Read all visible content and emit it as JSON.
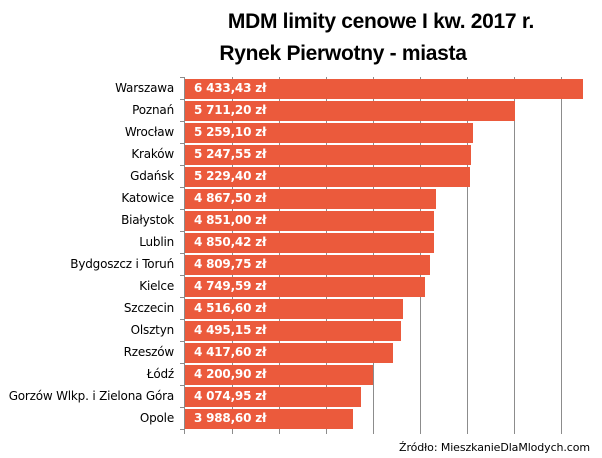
{
  "title_line1": "MDM limity cenowe I kw. 2017 r.",
  "title_line2": "Rynek Pierwotny - miasta",
  "source": "Źródło: MieszkanieDlaMlodych.com",
  "colors": {
    "bar": "#EB5A3C",
    "grid": "#8c8c8c",
    "label": "#ffffff"
  },
  "chart_data": {
    "type": "bar",
    "orientation": "horizontal",
    "title": "MDM limity cenowe I kw. 2017 r. Rynek Pierwotny - miasta",
    "xlabel": "",
    "ylabel": "",
    "unit": "zł",
    "categories": [
      "Warszawa",
      "Poznań",
      "Wrocław",
      "Kraków",
      "Gdańsk",
      "Katowice",
      "Białystok",
      "Lublin",
      "Bydgoszcz i Toruń",
      "Kielce",
      "Szczecin",
      "Olsztyn",
      "Rzeszów",
      "Łódź",
      "Gorzów Wlkp. i Zielona Góra",
      "Opole"
    ],
    "values": [
      6433.43,
      5711.2,
      5259.1,
      5247.55,
      5229.4,
      4867.5,
      4851.0,
      4850.42,
      4809.75,
      4749.59,
      4516.6,
      4495.15,
      4417.6,
      4200.9,
      4074.95,
      3988.6
    ],
    "labels": [
      "6 433,43 zł",
      "5 711,20 zł",
      "5 259,10 zł",
      "5 247,55 zł",
      "5 229,40 zł",
      "4 867,50 zł",
      "4 851,00 zł",
      "4 850,42 zł",
      "4 809,75 zł",
      "4 749,59 zł",
      "4 516,60 zł",
      "4 495,15 zł",
      "4 417,60 zł",
      "4 200,90 zł",
      "4 074,95 zł",
      "3 988,60 zł"
    ],
    "xlim": [
      2200,
      6700
    ],
    "x_grid_step": 500,
    "grid": true,
    "tick_labels_shown": false,
    "legend": "none",
    "annotation": "Źródło: MieszkanieDlaMlodych.com"
  }
}
